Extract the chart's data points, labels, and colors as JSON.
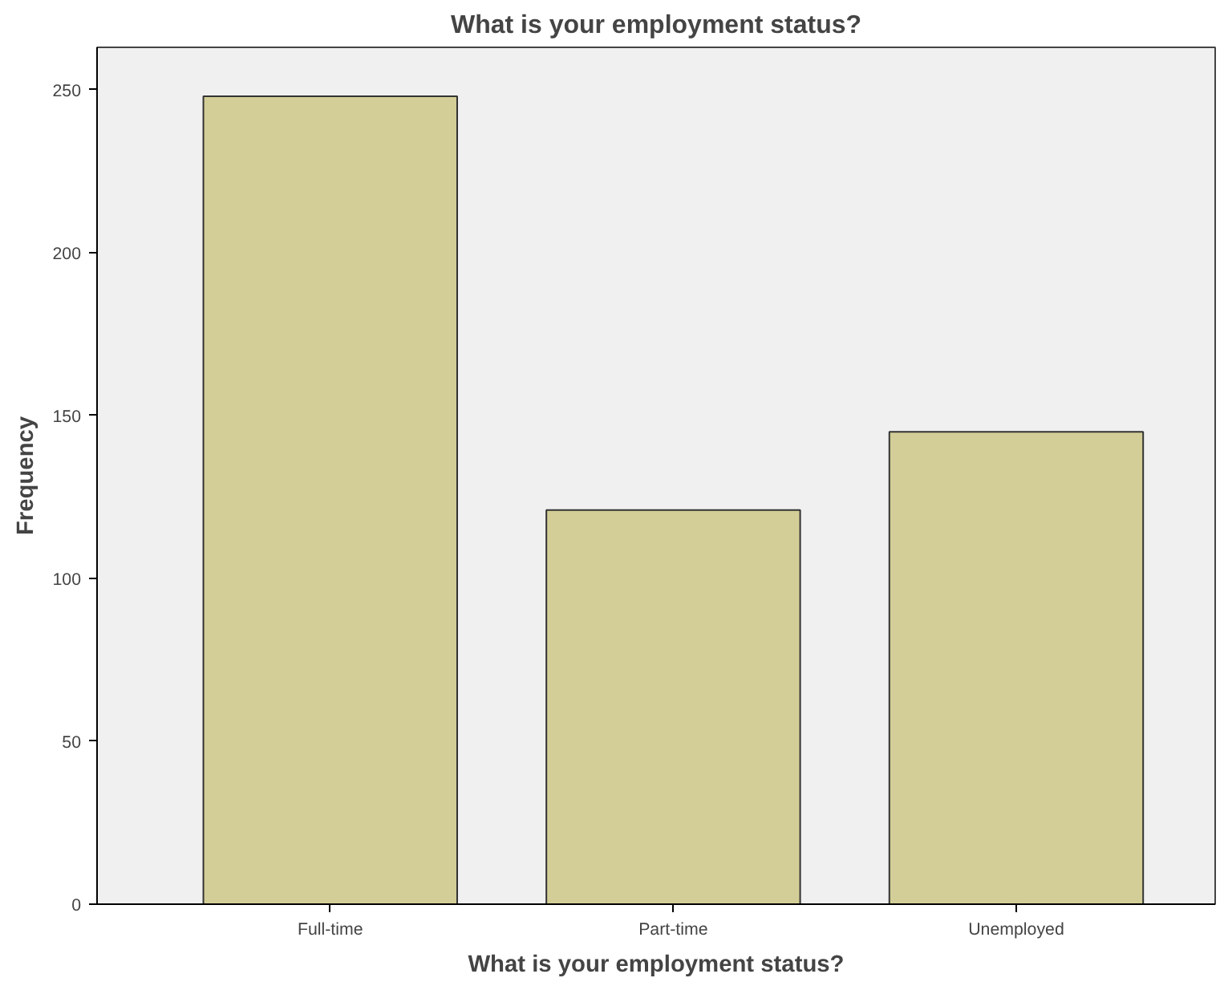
{
  "chart_data": {
    "type": "bar",
    "title": "What is your employment status?",
    "xlabel": "What is your employment status?",
    "ylabel": "Frequency",
    "categories": [
      "Full-time",
      "Part-time",
      "Unemployed"
    ],
    "values": [
      248,
      121,
      145
    ],
    "color": "#d3ce97",
    "ylim": [
      0,
      263
    ],
    "yticks": [
      0,
      50,
      100,
      150,
      200,
      250
    ],
    "grid": false
  }
}
